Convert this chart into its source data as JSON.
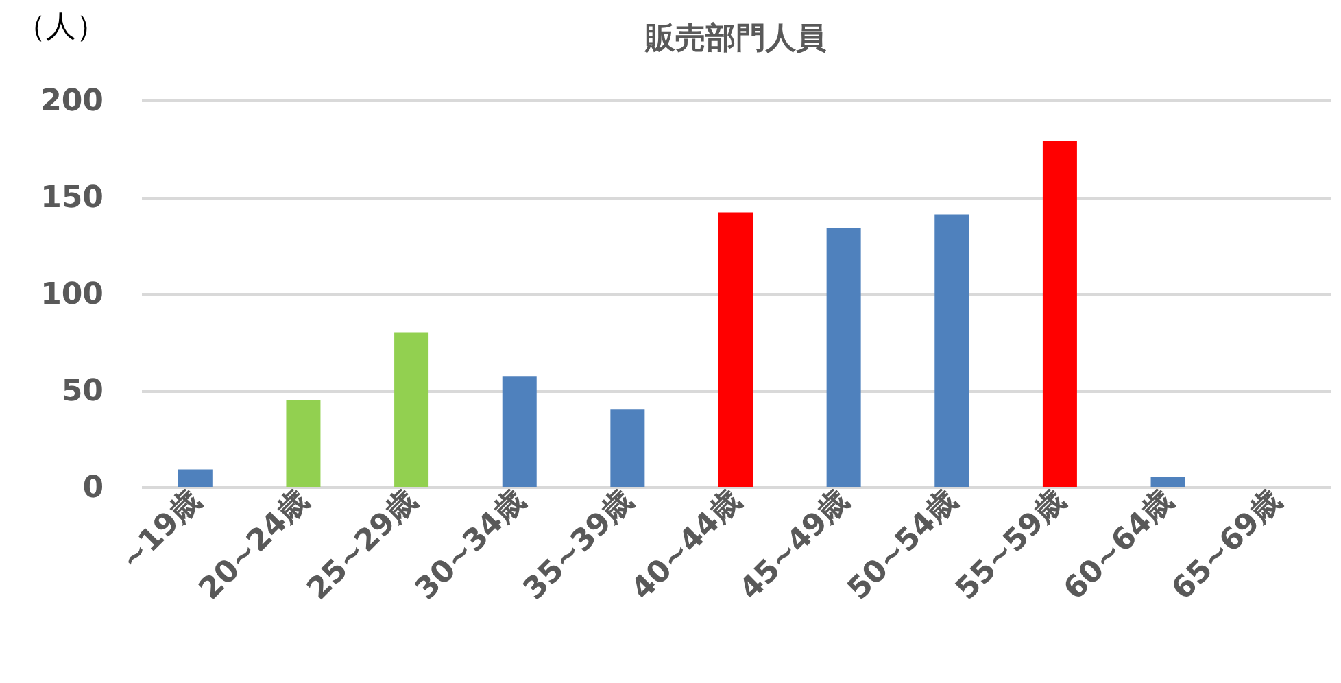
{
  "chart_data": {
    "type": "bar",
    "title": "販売部門人員",
    "ylabel": "（人）",
    "categories": [
      "~19歳",
      "20~24歳",
      "25~29歳",
      "30~34歳",
      "35~39歳",
      "40~44歳",
      "45~49歳",
      "50~54歳",
      "55~59歳",
      "60~64歳",
      "65~69歳"
    ],
    "values": [
      9,
      45,
      80,
      57,
      40,
      142,
      134,
      141,
      179,
      5,
      0
    ],
    "colors": [
      "#4f81bd",
      "#92d050",
      "#92d050",
      "#4f81bd",
      "#4f81bd",
      "#ff0000",
      "#4f81bd",
      "#4f81bd",
      "#ff0000",
      "#4f81bd",
      "#4f81bd"
    ],
    "ylim": [
      0,
      200
    ],
    "yticks": [
      0,
      50,
      100,
      150,
      200
    ],
    "grid": "y",
    "legend": false
  }
}
